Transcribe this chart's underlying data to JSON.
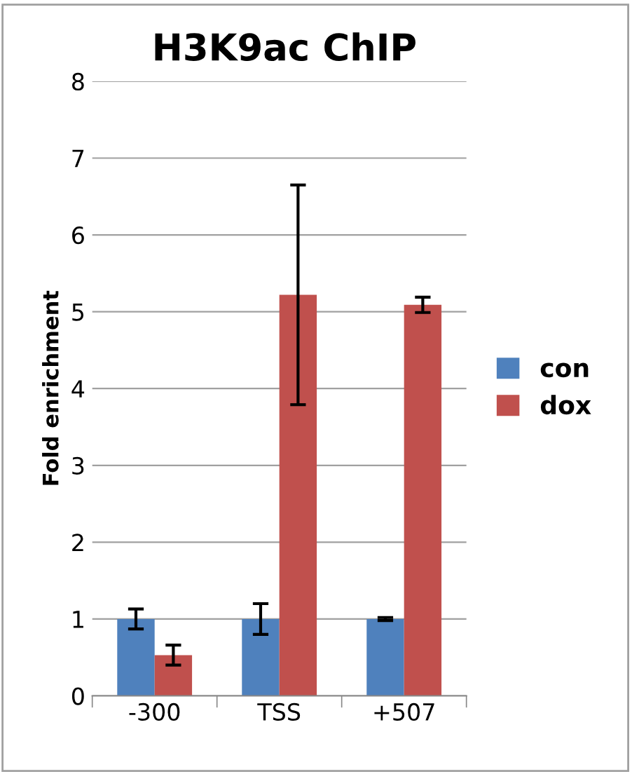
{
  "chart_data": {
    "type": "bar",
    "title": "H3K9ac ChIP",
    "ylabel": "Fold enrichment",
    "categories": [
      "-300",
      "TSS",
      "+507"
    ],
    "series": [
      {
        "name": "con",
        "color": "#4f81bd",
        "values": [
          1.0,
          1.0,
          1.0
        ],
        "errors": [
          0.13,
          0.2,
          0.02
        ]
      },
      {
        "name": "dox",
        "color": "#c0504d",
        "values": [
          0.53,
          5.22,
          5.09
        ],
        "errors": [
          0.13,
          1.43,
          0.1
        ]
      }
    ],
    "ylim": [
      0,
      8
    ],
    "yticks": [
      0,
      1,
      2,
      3,
      4,
      5,
      6,
      7,
      8
    ],
    "grid": "y",
    "legend": "right"
  }
}
